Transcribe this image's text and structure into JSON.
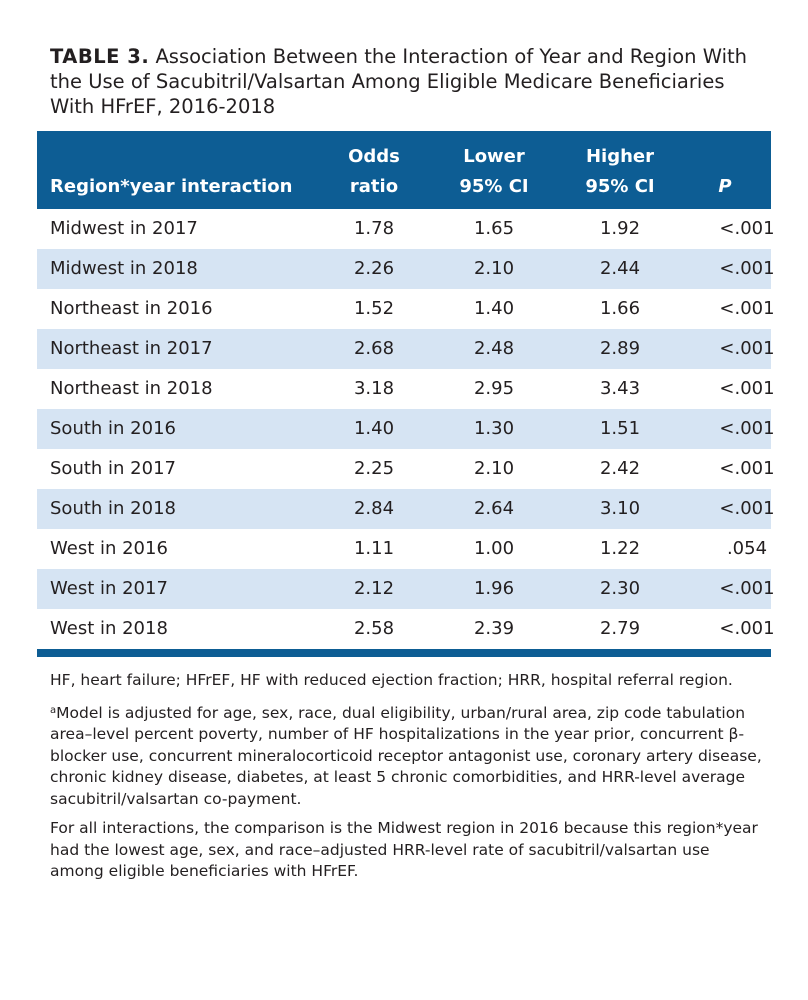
{
  "caption": {
    "label": "TABLE 3.",
    "text": "Association Between the Interaction of Year and Region With the Use of Sacubitril/Valsartan Among Eligible Medicare Beneficiaries With HFrEF, 2016-2018"
  },
  "header": {
    "region": "Region*year interaction",
    "odds_line1": "Odds",
    "odds_line2": "ratio",
    "lower_line1": "Lower",
    "lower_line2": "95% CI",
    "higher_line1": "Higher",
    "higher_line2": "95% CI",
    "p": "P"
  },
  "rows": [
    {
      "region": "Midwest in 2017",
      "or": "1.78",
      "lower": "1.65",
      "higher": "1.92",
      "p": "<.001"
    },
    {
      "region": "Midwest in 2018",
      "or": "2.26",
      "lower": "2.10",
      "higher": "2.44",
      "p": "<.001"
    },
    {
      "region": "Northeast in 2016",
      "or": "1.52",
      "lower": "1.40",
      "higher": "1.66",
      "p": "<.001"
    },
    {
      "region": "Northeast in 2017",
      "or": "2.68",
      "lower": "2.48",
      "higher": "2.89",
      "p": "<.001"
    },
    {
      "region": "Northeast in 2018",
      "or": "3.18",
      "lower": "2.95",
      "higher": "3.43",
      "p": "<.001"
    },
    {
      "region": "South in 2016",
      "or": "1.40",
      "lower": "1.30",
      "higher": "1.51",
      "p": "<.001"
    },
    {
      "region": "South in 2017",
      "or": "2.25",
      "lower": "2.10",
      "higher": "2.42",
      "p": "<.001"
    },
    {
      "region": "South in 2018",
      "or": "2.84",
      "lower": "2.64",
      "higher": "3.10",
      "p": "<.001"
    },
    {
      "region": "West in 2016",
      "or": "1.11",
      "lower": "1.00",
      "higher": "1.22",
      "p": ".054"
    },
    {
      "region": "West in 2017",
      "or": "2.12",
      "lower": "1.96",
      "higher": "2.30",
      "p": "<.001"
    },
    {
      "region": "West in 2018",
      "or": "2.58",
      "lower": "2.39",
      "higher": "2.79",
      "p": "<.001"
    }
  ],
  "footnotes": {
    "abbrev": "HF, heart failure; HFrEF, HF with reduced ejection fraction; HRR, hospital referral region.",
    "a_marker": "a",
    "a_text": "Model is adjusted for age, sex, race, dual eligibility, urban/rural area, zip code tabulation area–level percent poverty, number of HF hospitalizations in the year prior, concurrent β-blocker use, concurrent mineralocorticoid receptor antagonist use, coronary artery disease, chronic kidney disease, diabetes, at least 5 chronic comorbidities, and HRR-level average sacubitril/valsartan co-payment.",
    "comparison": "For all interactions, the comparison is the Midwest region in 2016 because this region*year had the lowest age, sex, and race–adjusted HRR-level rate of sacubitril/valsartan use among eligible beneficiaries with HFrEF."
  },
  "colors": {
    "header_bg": "#0d5d94",
    "alt_row_bg": "#d6e4f3"
  }
}
